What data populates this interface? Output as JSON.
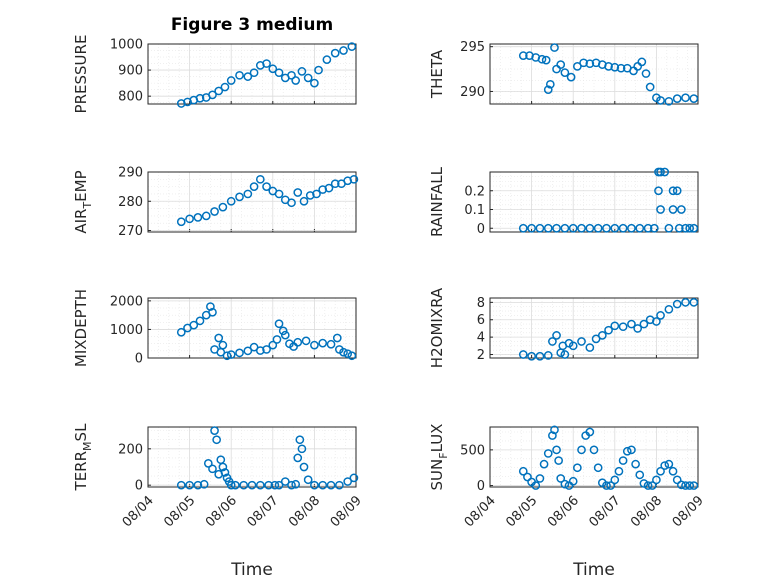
{
  "figure": {
    "title": "Figure 3 medium",
    "marker_color": "#0072BD"
  },
  "chart_data": [
    {
      "id": "pressure",
      "type": "scatter",
      "ylabel": "PRESSURE",
      "ylabel_sub": "",
      "title": "Figure 3 medium",
      "xlim": [
        "08/04",
        "08/09"
      ],
      "ylim": [
        770,
        1000
      ],
      "yticks": [
        800,
        900,
        1000
      ],
      "xticks": [
        "08/04",
        "08/05",
        "08/06",
        "08/07",
        "08/08",
        "08/09"
      ],
      "show_xticklabels": false,
      "x_day": [
        4.8,
        4.95,
        5.1,
        5.25,
        5.4,
        5.55,
        5.7,
        5.85,
        6.0,
        6.2,
        6.4,
        6.55,
        6.7,
        6.85,
        7.0,
        7.15,
        7.3,
        7.45,
        7.55,
        7.7,
        7.85,
        8.0,
        8.1,
        8.3,
        8.5,
        8.7,
        8.9
      ],
      "y": [
        772,
        778,
        785,
        792,
        795,
        805,
        820,
        835,
        860,
        880,
        875,
        890,
        918,
        925,
        905,
        890,
        870,
        880,
        860,
        895,
        870,
        850,
        900,
        940,
        965,
        975,
        990
      ]
    },
    {
      "id": "theta",
      "type": "scatter",
      "ylabel": "THETA",
      "ylabel_sub": "",
      "xlim": [
        "08/04",
        "08/09"
      ],
      "ylim": [
        288.6,
        295.3
      ],
      "yticks": [
        290,
        295
      ],
      "xticks": [
        "08/04",
        "08/05",
        "08/06",
        "08/07",
        "08/08",
        "08/09"
      ],
      "show_xticklabels": false,
      "x_day": [
        4.8,
        4.95,
        5.1,
        5.25,
        5.35,
        5.4,
        5.45,
        5.55,
        5.6,
        5.7,
        5.8,
        5.95,
        6.1,
        6.25,
        6.4,
        6.55,
        6.7,
        6.85,
        7.0,
        7.15,
        7.3,
        7.45,
        7.55,
        7.65,
        7.75,
        7.85,
        8.0,
        8.1,
        8.3,
        8.5,
        8.7,
        8.9
      ],
      "y": [
        294.0,
        294.0,
        293.8,
        293.6,
        293.5,
        290.2,
        290.8,
        294.9,
        292.5,
        293.0,
        292.1,
        291.6,
        292.8,
        293.2,
        293.1,
        293.2,
        293.0,
        292.8,
        292.7,
        292.6,
        292.6,
        292.3,
        292.8,
        293.3,
        292.0,
        290.5,
        289.3,
        289.0,
        288.9,
        289.2,
        289.3,
        289.2
      ]
    },
    {
      "id": "air_temp",
      "type": "scatter",
      "ylabel": "AIR",
      "ylabel_sub": "T",
      "ylabel_tail": "EMP",
      "xlim": [
        "08/04",
        "08/09"
      ],
      "ylim": [
        269.5,
        290
      ],
      "yticks": [
        270,
        280,
        290
      ],
      "xticks": [
        "08/04",
        "08/05",
        "08/06",
        "08/07",
        "08/08",
        "08/09"
      ],
      "show_xticklabels": false,
      "x_day": [
        4.8,
        5.0,
        5.2,
        5.4,
        5.6,
        5.8,
        6.0,
        6.2,
        6.4,
        6.55,
        6.7,
        6.85,
        7.0,
        7.15,
        7.3,
        7.45,
        7.6,
        7.75,
        7.9,
        8.05,
        8.2,
        8.35,
        8.5,
        8.65,
        8.8,
        8.95
      ],
      "y": [
        273,
        274,
        274.5,
        275,
        276.5,
        278,
        280,
        281.5,
        282.5,
        285,
        287.5,
        285,
        283.5,
        282.5,
        280.5,
        279.5,
        283,
        280,
        282,
        282.5,
        284,
        284.5,
        286,
        286,
        287,
        287.5
      ]
    },
    {
      "id": "rainfall",
      "type": "scatter",
      "ylabel": "RAINFALL",
      "ylabel_sub": "",
      "xlim": [
        "08/04",
        "08/09"
      ],
      "ylim": [
        -0.02,
        0.3
      ],
      "yticks": [
        0,
        0.1,
        0.2
      ],
      "ytick_labels": [
        "0",
        "0.1",
        "0.2"
      ],
      "xticks": [
        "08/04",
        "08/05",
        "08/06",
        "08/07",
        "08/08",
        "08/09"
      ],
      "show_xticklabels": false,
      "x_day": [
        4.8,
        5.0,
        5.2,
        5.4,
        5.6,
        5.8,
        6.0,
        6.2,
        6.4,
        6.6,
        6.8,
        7.0,
        7.2,
        7.4,
        7.6,
        7.8,
        7.95,
        8.05,
        8.05,
        8.1,
        8.1,
        8.2,
        8.3,
        8.4,
        8.4,
        8.5,
        8.55,
        8.6,
        8.7,
        8.8,
        8.9
      ],
      "y": [
        0,
        0,
        0,
        0,
        0,
        0,
        0,
        0,
        0,
        0,
        0,
        0,
        0,
        0,
        0,
        0,
        0,
        0.3,
        0.2,
        0.3,
        0.1,
        0.3,
        0,
        0.2,
        0.1,
        0.2,
        0,
        0.1,
        0,
        0,
        0
      ]
    },
    {
      "id": "mixdepth",
      "type": "scatter",
      "ylabel": "MIXDEPTH",
      "ylabel_sub": "",
      "xlim": [
        "08/04",
        "08/09"
      ],
      "ylim": [
        0,
        2100
      ],
      "yticks": [
        0,
        1000,
        2000
      ],
      "xticks": [
        "08/04",
        "08/05",
        "08/06",
        "08/07",
        "08/08",
        "08/09"
      ],
      "show_xticklabels": false,
      "x_day": [
        4.8,
        4.95,
        5.1,
        5.25,
        5.4,
        5.5,
        5.55,
        5.6,
        5.7,
        5.75,
        5.8,
        5.9,
        6.0,
        6.2,
        6.4,
        6.55,
        6.7,
        6.85,
        7.0,
        7.1,
        7.15,
        7.25,
        7.3,
        7.4,
        7.5,
        7.6,
        7.8,
        8.0,
        8.2,
        8.4,
        8.55,
        8.6,
        8.7,
        8.8,
        8.9
      ],
      "y": [
        900,
        1050,
        1150,
        1300,
        1500,
        1800,
        1600,
        300,
        700,
        200,
        450,
        80,
        120,
        180,
        250,
        380,
        260,
        300,
        450,
        650,
        1200,
        950,
        800,
        500,
        400,
        550,
        600,
        450,
        520,
        480,
        700,
        300,
        200,
        150,
        80
      ]
    },
    {
      "id": "h2omixra",
      "type": "scatter",
      "ylabel": "H2OMIXRA",
      "ylabel_sub": "",
      "xlim": [
        "08/04",
        "08/09"
      ],
      "ylim": [
        1.6,
        8.5
      ],
      "yticks": [
        2,
        4,
        6,
        8
      ],
      "xticks": [
        "08/04",
        "08/05",
        "08/06",
        "08/07",
        "08/08",
        "08/09"
      ],
      "show_xticklabels": false,
      "x_day": [
        4.8,
        5.0,
        5.2,
        5.4,
        5.5,
        5.6,
        5.7,
        5.75,
        5.8,
        5.9,
        6.0,
        6.2,
        6.4,
        6.55,
        6.7,
        6.85,
        7.0,
        7.2,
        7.4,
        7.55,
        7.7,
        7.85,
        8.0,
        8.1,
        8.3,
        8.5,
        8.7,
        8.9
      ],
      "y": [
        2.0,
        1.8,
        1.8,
        1.9,
        3.5,
        4.2,
        2.2,
        3.0,
        2.0,
        3.3,
        3.0,
        3.5,
        2.8,
        3.8,
        4.2,
        4.8,
        5.3,
        5.2,
        5.5,
        5.0,
        5.5,
        6.0,
        5.8,
        6.5,
        7.2,
        7.8,
        8.0,
        8.0
      ]
    },
    {
      "id": "terr_msl",
      "type": "scatter",
      "ylabel": "TERR",
      "ylabel_sub": "M",
      "ylabel_tail": "SL",
      "xlim": [
        "08/04",
        "08/09"
      ],
      "ylim": [
        -10,
        320
      ],
      "yticks": [
        0,
        200
      ],
      "xticks": [
        "08/04",
        "08/05",
        "08/06",
        "08/07",
        "08/08",
        "08/09"
      ],
      "show_xticklabels": true,
      "x_day": [
        4.8,
        5.0,
        5.2,
        5.35,
        5.45,
        5.55,
        5.6,
        5.65,
        5.7,
        5.75,
        5.8,
        5.85,
        5.9,
        5.95,
        6.0,
        6.1,
        6.3,
        6.5,
        6.7,
        6.9,
        7.05,
        7.15,
        7.3,
        7.45,
        7.55,
        7.6,
        7.65,
        7.7,
        7.75,
        7.85,
        8.0,
        8.2,
        8.4,
        8.6,
        8.8,
        8.95
      ],
      "y": [
        0,
        0,
        0,
        5,
        120,
        90,
        300,
        250,
        60,
        140,
        100,
        70,
        40,
        20,
        0,
        0,
        0,
        0,
        0,
        0,
        0,
        0,
        20,
        0,
        5,
        150,
        250,
        200,
        100,
        30,
        0,
        0,
        0,
        0,
        20,
        40
      ]
    },
    {
      "id": "sun_flux",
      "type": "scatter",
      "ylabel": "SUN",
      "ylabel_sub": "F",
      "ylabel_tail": "LUX",
      "xlim": [
        "08/04",
        "08/09"
      ],
      "ylim": [
        -20,
        820
      ],
      "yticks": [
        0,
        500
      ],
      "xticks": [
        "08/04",
        "08/05",
        "08/06",
        "08/07",
        "08/08",
        "08/09"
      ],
      "show_xticklabels": true,
      "x_day": [
        4.8,
        4.9,
        5.0,
        5.1,
        5.2,
        5.3,
        5.4,
        5.5,
        5.55,
        5.6,
        5.65,
        5.7,
        5.8,
        5.9,
        6.0,
        6.1,
        6.2,
        6.3,
        6.4,
        6.5,
        6.6,
        6.7,
        6.8,
        6.9,
        7.0,
        7.1,
        7.2,
        7.3,
        7.4,
        7.5,
        7.6,
        7.7,
        7.8,
        7.9,
        8.0,
        8.1,
        8.2,
        8.3,
        8.4,
        8.5,
        8.6,
        8.7,
        8.8,
        8.9
      ],
      "y": [
        200,
        120,
        50,
        0,
        100,
        300,
        450,
        700,
        780,
        500,
        350,
        100,
        20,
        0,
        60,
        250,
        500,
        700,
        750,
        500,
        250,
        40,
        0,
        0,
        80,
        200,
        350,
        480,
        500,
        300,
        150,
        30,
        0,
        0,
        80,
        200,
        280,
        300,
        200,
        80,
        10,
        0,
        0,
        0
      ]
    }
  ],
  "x_axis": {
    "label": "Time"
  }
}
